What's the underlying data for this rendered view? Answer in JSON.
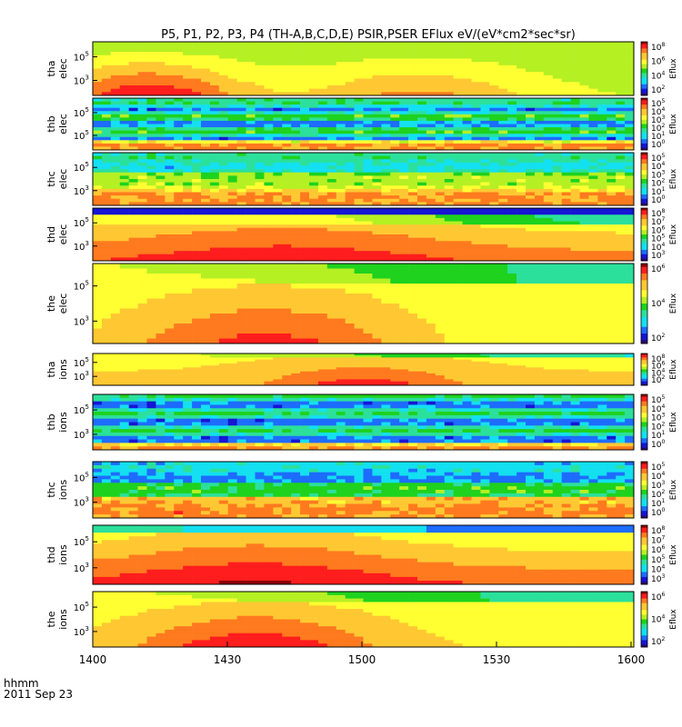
{
  "title": "P5, P1, P2, P3, P4 (TH-A,B,C,D,E) PSIR,PSER EFlux eV/(eV*cm2*sec*sr)",
  "time_axis": {
    "ticks": [
      "1400",
      "1430",
      "1500",
      "1530",
      "1600"
    ],
    "corner_line1": "hhmm",
    "corner_line2": "2011 Sep 23"
  },
  "colorbar_label": "Eflux",
  "colors": {
    "colormap": [
      "#2b0a6b",
      "#1515d4",
      "#1d6cff",
      "#13e0f0",
      "#2be09b",
      "#1ed21e",
      "#b5f023",
      "#ffff32",
      "#ffc832",
      "#ff7a1e",
      "#ff1d1d",
      "#8b0000"
    ]
  },
  "chart_data": {
    "type": "heatmap",
    "time_range": [
      "1400",
      "1600"
    ],
    "panels": [
      {
        "label1": "tha",
        "label2": "elec",
        "yticks": [
          [
            "10",
            "5"
          ],
          [
            "10",
            "3"
          ]
        ],
        "cbar": [
          [
            "10",
            "8"
          ],
          [
            "10",
            "6"
          ],
          [
            "10",
            "4"
          ],
          [
            "10",
            "2"
          ]
        ]
      },
      {
        "label1": "thb",
        "label2": "elec",
        "yticks": [
          [
            "10",
            "5"
          ],
          [
            "10",
            "5"
          ]
        ],
        "cbar": [
          [
            "10",
            "5"
          ],
          [
            "10",
            "4"
          ],
          [
            "10",
            "3"
          ],
          [
            "10",
            "2"
          ],
          [
            "10",
            "1"
          ],
          [
            "10",
            "0"
          ]
        ]
      },
      {
        "label1": "thc",
        "label2": "elec",
        "yticks": [
          [
            "10",
            "5"
          ],
          [
            "10",
            "3"
          ]
        ],
        "cbar": [
          [
            "10",
            "5"
          ],
          [
            "10",
            "4"
          ],
          [
            "10",
            "3"
          ],
          [
            "10",
            "2"
          ],
          [
            "10",
            "1"
          ],
          [
            "10",
            "0"
          ]
        ]
      },
      {
        "label1": "thd",
        "label2": "elec",
        "yticks": [
          [
            "10",
            "5"
          ],
          [
            "10",
            "3"
          ]
        ],
        "cbar": [
          [
            "10",
            "8"
          ],
          [
            "10",
            "7"
          ],
          [
            "10",
            "6"
          ],
          [
            "10",
            "5"
          ],
          [
            "10",
            "4"
          ],
          [
            "10",
            "3"
          ]
        ]
      },
      {
        "label1": "the",
        "label2": "elec",
        "yticks": [
          [
            "10",
            "5"
          ],
          [
            "10",
            "3"
          ]
        ],
        "cbar": [
          [
            "10",
            "6"
          ],
          [
            "10",
            "4"
          ],
          [
            "10",
            "2"
          ]
        ]
      },
      {
        "label1": "tha",
        "label2": "ions",
        "yticks": [
          [
            "10",
            "5"
          ],
          [
            "10",
            "3"
          ]
        ],
        "cbar": [
          [
            "10",
            "8"
          ],
          [
            "10",
            "6"
          ],
          [
            "10",
            "4"
          ],
          [
            "10",
            "2"
          ]
        ]
      },
      {
        "label1": "thb",
        "label2": "ions",
        "yticks": [
          [
            "10",
            "5"
          ],
          [
            "10",
            "3"
          ]
        ],
        "cbar": [
          [
            "10",
            "5"
          ],
          [
            "10",
            "4"
          ],
          [
            "10",
            "3"
          ],
          [
            "10",
            "2"
          ],
          [
            "10",
            "1"
          ],
          [
            "10",
            "0"
          ]
        ]
      },
      {
        "label1": "thc",
        "label2": "ions",
        "yticks": [
          [
            "10",
            "5"
          ],
          [
            "10",
            "3"
          ]
        ],
        "cbar": [
          [
            "10",
            "5"
          ],
          [
            "10",
            "4"
          ],
          [
            "10",
            "3"
          ],
          [
            "10",
            "2"
          ],
          [
            "10",
            "1"
          ],
          [
            "10",
            "0"
          ]
        ]
      },
      {
        "label1": "thd",
        "label2": "ions",
        "yticks": [
          [
            "10",
            "5"
          ],
          [
            "10",
            "3"
          ]
        ],
        "cbar": [
          [
            "10",
            "8"
          ],
          [
            "10",
            "7"
          ],
          [
            "10",
            "6"
          ],
          [
            "10",
            "5"
          ],
          [
            "10",
            "4"
          ],
          [
            "10",
            "3"
          ]
        ]
      },
      {
        "label1": "the",
        "label2": "ions",
        "yticks": [
          [
            "10",
            "5"
          ],
          [
            "10",
            "3"
          ]
        ],
        "cbar": [
          [
            "10",
            "6"
          ],
          [
            "10",
            "4"
          ],
          [
            "10",
            "2"
          ]
        ]
      }
    ]
  }
}
